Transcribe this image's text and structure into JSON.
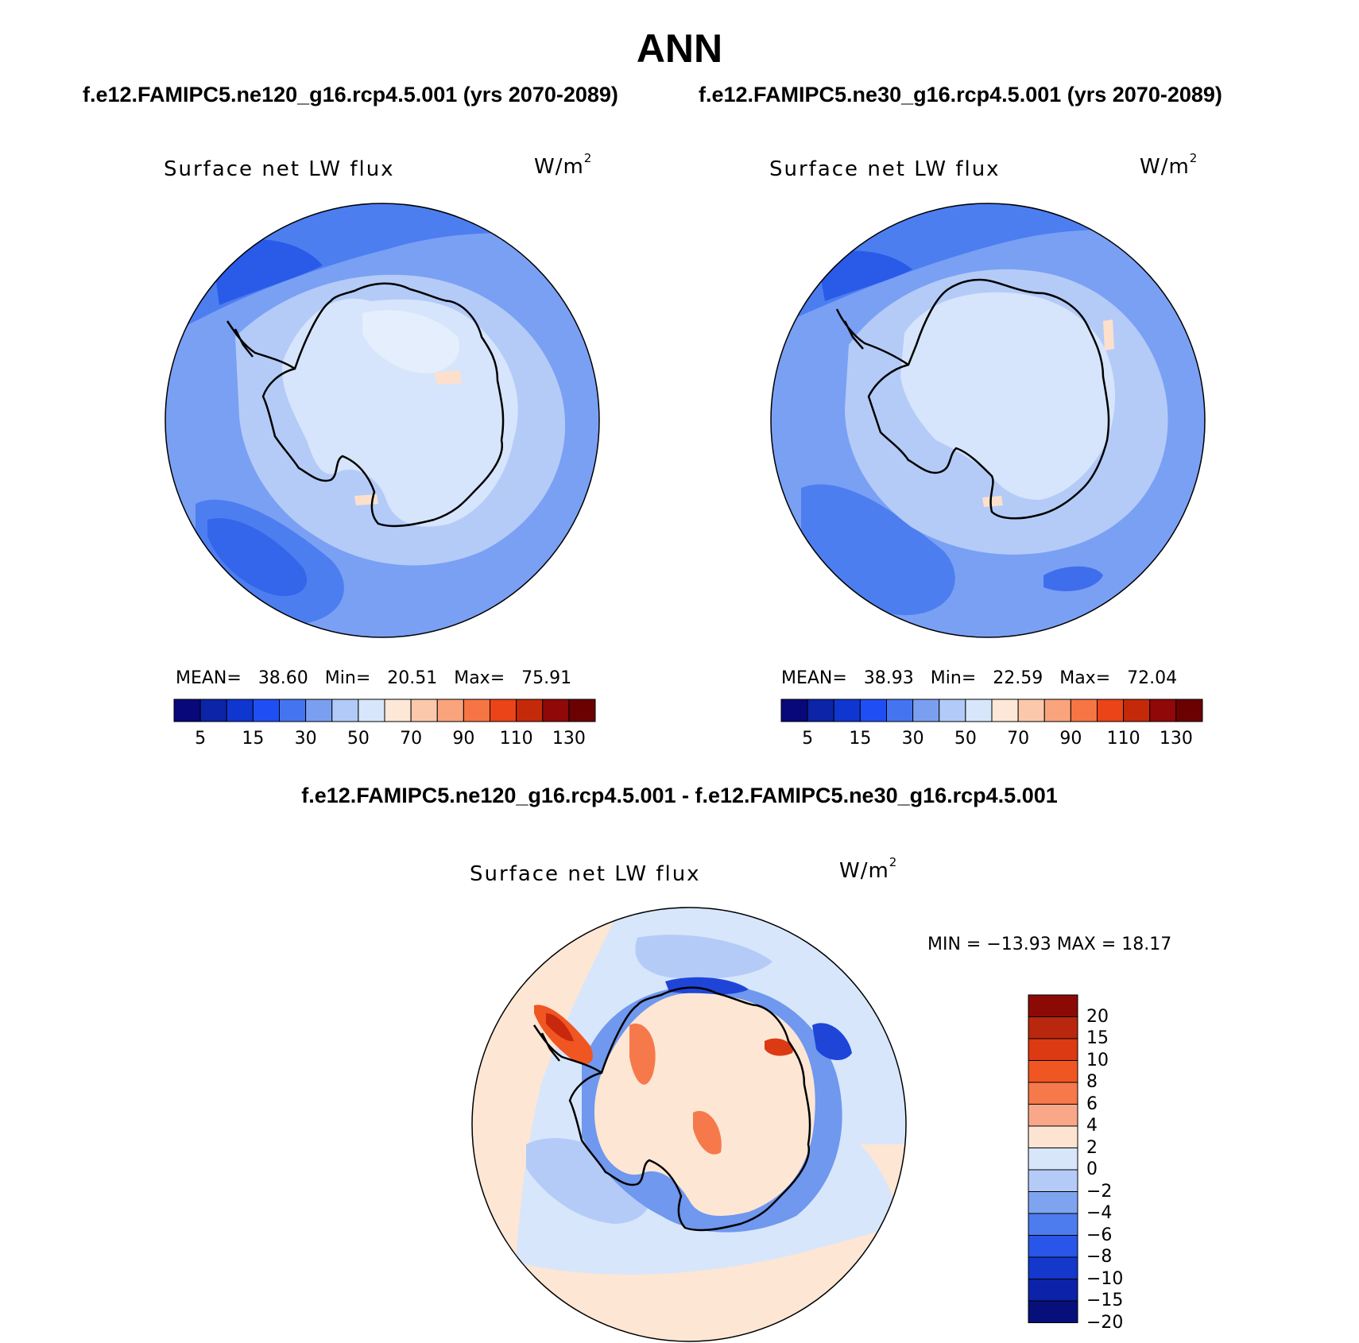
{
  "title": "ANN",
  "case1": "f.e12.FAMIPC5.ne120_g16.rcp4.5.001 (yrs 2070-2089)",
  "case2": "f.e12.FAMIPC5.ne30_g16.rcp4.5.001 (yrs 2070-2089)",
  "diff_title": "f.e12.FAMIPC5.ne120_g16.rcp4.5.001 - f.e12.FAMIPC5.ne30_g16.rcp4.5.001",
  "panels": [
    {
      "label": "Surface net LW flux",
      "units_base": "W/m",
      "units_exp": "2",
      "mean_label": "MEAN=",
      "mean": "38.60",
      "min_label": "Min=",
      "min": "20.51",
      "max_label": "Max=",
      "max": "75.91"
    },
    {
      "label": "Surface net LW flux",
      "units_base": "W/m",
      "units_exp": "2",
      "mean_label": "MEAN=",
      "mean": "38.93",
      "min_label": "Min=",
      "min": "22.59",
      "max_label": "Max=",
      "max": "72.04"
    },
    {
      "label": "Surface net LW flux",
      "units_base": "W/m",
      "units_exp": "2",
      "minmax": "MIN = −13.93 MAX =  18.17"
    }
  ],
  "abs_colorbar": {
    "colors": [
      "#08087a",
      "#0b24a8",
      "#1036d0",
      "#1f4ff4",
      "#4474f0",
      "#7b9ff0",
      "#b2caf8",
      "#d7e6fb",
      "#fde8d8",
      "#fbc8ac",
      "#f9a47c",
      "#f77444",
      "#ea4418",
      "#c42a0a",
      "#900808",
      "#6a0202"
    ],
    "labels": [
      "5",
      "15",
      "30",
      "50",
      "70",
      "90",
      "110",
      "130"
    ]
  },
  "diff_colorbar": {
    "colors_top_to_bottom": [
      "#8b0a06",
      "#b9270f",
      "#dc3a12",
      "#f05622",
      "#f6794b",
      "#f8a888",
      "#fde4d2",
      "#d8e6fa",
      "#b4cbf8",
      "#7fa4ef",
      "#4d7cee",
      "#2955e8",
      "#1438cc",
      "#0c22a8",
      "#07107a"
    ],
    "labels": [
      "20",
      "15",
      "10",
      "8",
      "6",
      "4",
      "2",
      "0",
      "−2",
      "−4",
      "−6",
      "−8",
      "−10",
      "−15",
      "−20"
    ]
  },
  "map_colors": {
    "ocean_abs": "#7aa0f4",
    "ocean_abs_dark": "#4d7ef0",
    "ocean_abs_deep": "#2a5ae8",
    "ice_ring": "#b4cbf8",
    "continent": "#d6e5fb",
    "continent_light": "#e4eefc",
    "warm_spot": "#fde0cc",
    "diff_ocean": "#d7e6fb",
    "diff_warm": "#fde6d4",
    "diff_cool": "#b4cbf8",
    "diff_blue": "#6f98ee",
    "diff_darkblue": "#1f45d8",
    "diff_red": "#f2602c",
    "diff_darkred": "#c8280e"
  }
}
